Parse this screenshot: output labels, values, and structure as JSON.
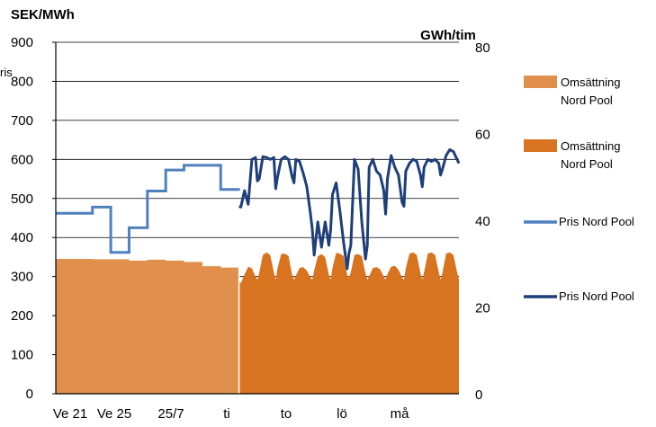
{
  "chart_data": {
    "type": "area",
    "left_axis": {
      "unit": "SEK/MWh",
      "ylim": [
        0,
        900
      ],
      "ticks": [
        0,
        100,
        200,
        300,
        400,
        500,
        600,
        700,
        800,
        900
      ]
    },
    "right_axis": {
      "unit": "GWh/tim",
      "ylim": [
        0,
        80
      ],
      "ticks": [
        0,
        20,
        40,
        60,
        80
      ]
    },
    "left_edge_fragment": "ris",
    "x_tick_labels": [
      "Ve 21",
      "Ve 25",
      "25/7",
      "ti",
      "to",
      "lö",
      "må"
    ],
    "grid": true,
    "legend_position": "right",
    "legend": [
      {
        "label": "Omsättning Nord Pool",
        "kind": "area",
        "color": "#E0904C"
      },
      {
        "label": "Omsättning Nord Pool",
        "kind": "area",
        "color": "#D8731F"
      },
      {
        "label": "Pris Nord Pool",
        "kind": "line",
        "color": "#4E81BD"
      },
      {
        "label": "Pris Nord Pool",
        "kind": "line",
        "color": "#1F3F7A"
      }
    ],
    "series": [
      {
        "kind": "area",
        "axis": "right",
        "color": "#E0904C",
        "period": "weekly",
        "x": [
          0,
          1,
          2,
          3,
          4,
          5,
          6,
          7,
          8,
          9
        ],
        "y": [
          31.1,
          31.1,
          31.0,
          31.0,
          30.7,
          30.9,
          30.7,
          30.4,
          29.4,
          29.1
        ]
      },
      {
        "kind": "area",
        "axis": "right",
        "color": "#D8731F",
        "period": "hourly",
        "x": [
          10.0,
          10.1,
          10.3,
          10.5,
          10.7,
          10.9,
          11.0,
          11.1,
          11.3,
          11.5,
          11.7,
          11.9,
          12.0,
          12.1,
          12.3,
          12.5,
          12.7,
          12.9,
          13.0,
          13.1,
          13.3,
          13.5,
          13.7,
          13.9,
          14.0,
          14.1,
          14.3,
          14.5,
          14.7,
          14.9,
          15.0,
          15.1,
          15.3,
          15.5,
          15.7,
          15.9,
          16.0,
          16.1,
          16.3,
          16.5,
          16.7,
          16.9,
          17.0,
          17.1,
          17.3,
          17.5,
          17.7,
          17.9,
          18.0,
          18.1,
          18.3,
          18.5,
          18.7,
          18.9,
          19.0,
          19.1,
          19.3,
          19.5,
          19.7,
          19.9,
          20.0,
          20.1,
          20.3,
          20.5,
          20.7,
          20.9,
          21.0,
          21.1,
          21.3,
          21.5,
          21.7,
          21.9,
          22.0
        ],
        "y": [
          26.0,
          25.5,
          27.5,
          29.3,
          28.9,
          27.0,
          26.3,
          27.8,
          32.0,
          32.6,
          32.0,
          28.0,
          26.3,
          28.9,
          32.2,
          32.3,
          31.8,
          27.4,
          26.3,
          27.2,
          29.0,
          29.2,
          28.4,
          26.8,
          26.3,
          28.4,
          31.7,
          32.2,
          31.5,
          27.4,
          26.3,
          29.0,
          32.5,
          32.3,
          31.8,
          27.4,
          26.6,
          28.0,
          32.0,
          32.2,
          31.7,
          27.8,
          26.3,
          27.0,
          29.0,
          29.2,
          28.7,
          27.0,
          26.3,
          27.6,
          29.3,
          29.5,
          28.6,
          26.8,
          26.3,
          28.9,
          32.3,
          32.6,
          32.0,
          27.8,
          26.3,
          28.0,
          32.3,
          32.6,
          32.0,
          28.0,
          26.3,
          27.9,
          32.3,
          32.6,
          32.0,
          28.0,
          26.3
        ]
      },
      {
        "kind": "line",
        "axis": "left",
        "color": "#4E81BD",
        "period": "weekly",
        "x": [
          0,
          1,
          2,
          3,
          4,
          5,
          6,
          7,
          8,
          9,
          10
        ],
        "y": [
          462,
          462,
          478,
          362,
          425,
          519,
          573,
          585,
          585,
          523,
          523
        ]
      },
      {
        "kind": "line",
        "axis": "left",
        "color": "#1F3F7A",
        "period": "hourly",
        "x": [
          10.0,
          10.1,
          10.3,
          10.5,
          10.7,
          10.9,
          11.0,
          11.1,
          11.3,
          11.5,
          11.7,
          11.9,
          12.0,
          12.1,
          12.3,
          12.5,
          12.7,
          12.9,
          13.0,
          13.1,
          13.3,
          13.5,
          13.7,
          13.9,
          14.0,
          14.1,
          14.3,
          14.5,
          14.7,
          14.9,
          15.0,
          15.1,
          15.3,
          15.5,
          15.7,
          15.9,
          16.0,
          16.1,
          16.3,
          16.5,
          16.7,
          16.9,
          17.0,
          17.1,
          17.3,
          17.5,
          17.7,
          17.9,
          18.0,
          18.1,
          18.3,
          18.5,
          18.7,
          18.9,
          19.0,
          19.1,
          19.3,
          19.5,
          19.7,
          19.9,
          20.0,
          20.1,
          20.3,
          20.5,
          20.7,
          20.9,
          21.0,
          21.1,
          21.3,
          21.5,
          21.7,
          21.9,
          22.0
        ],
        "y": [
          480,
          478,
          520,
          485,
          600,
          605,
          545,
          550,
          607,
          605,
          600,
          605,
          525,
          555,
          600,
          607,
          600,
          555,
          540,
          600,
          595,
          565,
          530,
          460,
          420,
          355,
          440,
          375,
          440,
          380,
          420,
          510,
          540,
          470,
          390,
          320,
          360,
          380,
          600,
          575,
          440,
          345,
          380,
          580,
          600,
          570,
          560,
          520,
          460,
          550,
          610,
          580,
          560,
          490,
          480,
          570,
          590,
          600,
          595,
          560,
          530,
          580,
          600,
          595,
          600,
          590,
          560,
          575,
          610,
          625,
          620,
          600,
          590
        ]
      }
    ]
  }
}
